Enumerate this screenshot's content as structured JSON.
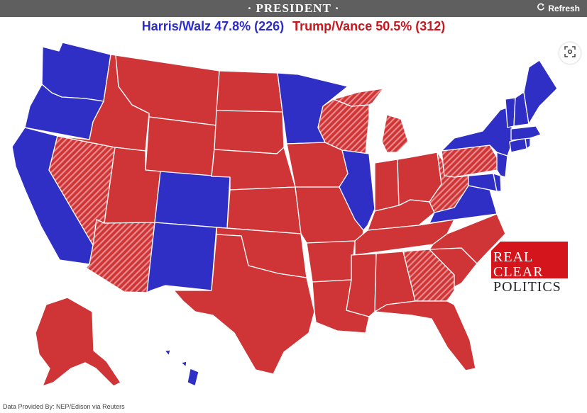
{
  "header": {
    "title": "· PRESIDENT ·",
    "refresh_label": "Refresh"
  },
  "results": {
    "dem_text": "Harris/Walz 47.8% (226)",
    "rep_text": "Trump/Vance 50.5% (312)"
  },
  "colors": {
    "dem": "#2f2fc6",
    "rep": "#cf3436",
    "topbar": "#5f5f5f",
    "border": "#ffffff"
  },
  "icons": {
    "refresh": "refresh-icon",
    "fullscreen": "fullscreen-icon"
  },
  "logo": {
    "line1": "REAL",
    "line2": "CLEAR",
    "line3": "POLITICS"
  },
  "footer": {
    "text": "Data Provided By: NEP/Edison via Reuters"
  }
}
